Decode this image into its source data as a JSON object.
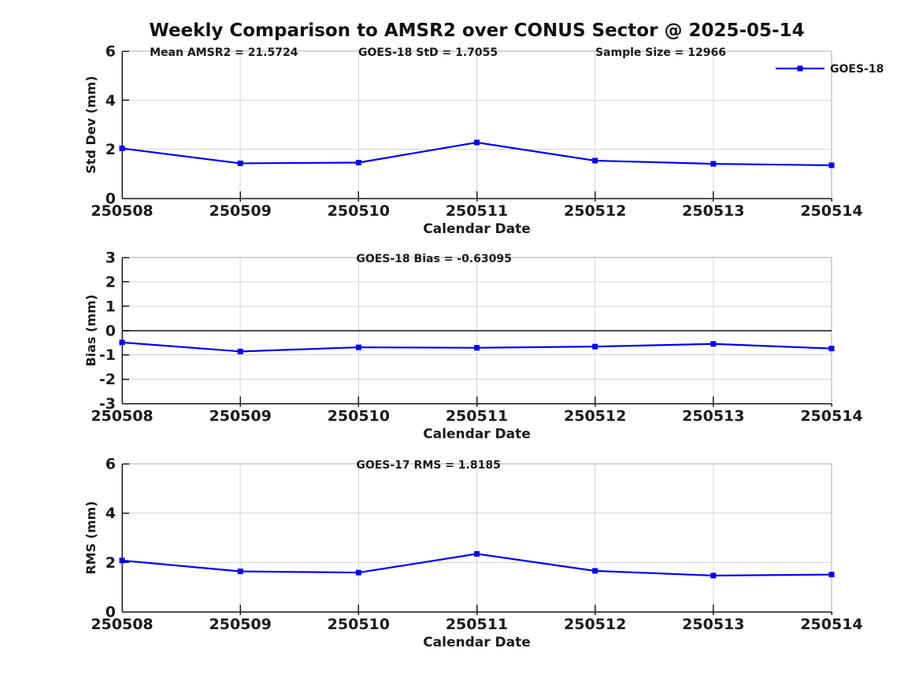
{
  "page_title": "Weekly Comparison to AMSR2 over CONUS Sector @ 2025-05-14",
  "colors": {
    "line_blue": "#0000EE",
    "grid": "#d5d5d5",
    "box_edge": "#ababab",
    "axis": "#1a1a1a",
    "text": "#1a1a1a",
    "zero_line": "#4d4d4d"
  },
  "legend": {
    "label": "GOES-18",
    "position": "top-right-outside"
  },
  "chart_data": [
    {
      "type": "line",
      "panel": "std-dev",
      "title": "",
      "xlabel": "Calendar Date",
      "ylabel": "Std Dev (mm)",
      "categories": [
        "250508",
        "250509",
        "250510",
        "250511",
        "250512",
        "250513",
        "250514"
      ],
      "series": [
        {
          "name": "GOES-18",
          "values": [
            2.04,
            1.43,
            1.46,
            2.28,
            1.54,
            1.41,
            1.35
          ]
        }
      ],
      "ylim": [
        0,
        6
      ],
      "yticks": [
        0,
        2,
        4,
        6
      ],
      "grid": true,
      "zero_line": false,
      "annotations": [
        "Mean AMSR2 = 21.5724",
        "GOES-18 StD = 1.7055",
        "Sample Size = 12966"
      ],
      "legend_position": "top-right-outside"
    },
    {
      "type": "line",
      "panel": "bias",
      "title": "",
      "xlabel": "Calendar Date",
      "ylabel": "Bias (mm)",
      "categories": [
        "250508",
        "250509",
        "250510",
        "250511",
        "250512",
        "250513",
        "250514"
      ],
      "series": [
        {
          "name": "GOES-18",
          "values": [
            -0.49,
            -0.86,
            -0.69,
            -0.71,
            -0.66,
            -0.55,
            -0.74
          ]
        }
      ],
      "ylim": [
        -3,
        3
      ],
      "yticks": [
        -3,
        -2,
        -1,
        0,
        1,
        2,
        3
      ],
      "grid": true,
      "zero_line": true,
      "annotations": [
        "GOES-18 Bias  = -0.63095"
      ],
      "legend_position": "none"
    },
    {
      "type": "line",
      "panel": "rms",
      "title": "",
      "xlabel": "Calendar Date",
      "ylabel": "RMS (mm)",
      "categories": [
        "250508",
        "250509",
        "250510",
        "250511",
        "250512",
        "250513",
        "250514"
      ],
      "series": [
        {
          "name": "GOES-18",
          "values": [
            2.08,
            1.64,
            1.59,
            2.35,
            1.66,
            1.47,
            1.51
          ]
        }
      ],
      "ylim": [
        0,
        6
      ],
      "yticks": [
        0,
        2,
        4,
        6
      ],
      "grid": true,
      "zero_line": false,
      "annotations": [
        "GOES-17 RMS = 1.8185"
      ],
      "legend_position": "none"
    }
  ]
}
